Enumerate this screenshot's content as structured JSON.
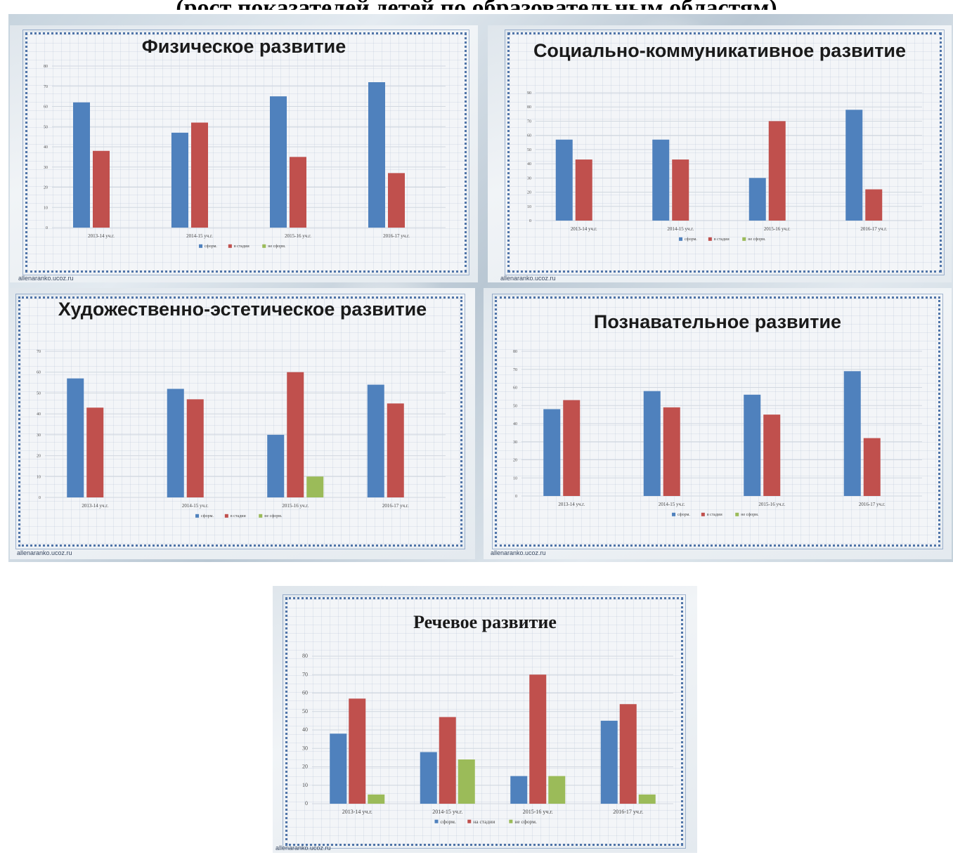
{
  "page": {
    "heading": "(рост показателей детей по образовательным областям)",
    "credit": "allenaranko.ucoz.ru"
  },
  "colors": {
    "s1": "#4f81bd",
    "s2": "#c0504d",
    "s3": "#9bbb59"
  },
  "chart_data": [
    {
      "type": "bar",
      "title": "Физическое развитие",
      "categories": [
        "2013-14 уч.г.",
        "2014-15 уч.г.",
        "2015-16 уч.г.",
        "2016-17 уч.г."
      ],
      "series": [
        {
          "name": "сформ.",
          "values": [
            62,
            47,
            65,
            72
          ]
        },
        {
          "name": "в стадии",
          "values": [
            38,
            52,
            35,
            27
          ]
        },
        {
          "name": "не сформ.",
          "values": [
            0,
            0,
            0,
            0
          ]
        }
      ],
      "ylim": [
        0,
        80
      ],
      "yticks": [
        "0",
        "10",
        "20",
        "30",
        "40",
        "50",
        "60",
        "70",
        "80"
      ]
    },
    {
      "type": "bar",
      "title": "Социально-коммуникативное развитие",
      "categories": [
        "2013-14 уч.г.",
        "2014-15 уч.г.",
        "2015-16 уч.г.",
        "2016-17 уч.г."
      ],
      "series": [
        {
          "name": "сформ.",
          "values": [
            57,
            57,
            30,
            78
          ]
        },
        {
          "name": "в стадии",
          "values": [
            43,
            43,
            70,
            22
          ]
        },
        {
          "name": "не сформ.",
          "values": [
            0,
            0,
            0,
            0
          ]
        }
      ],
      "ylim": [
        0,
        90
      ],
      "yticks": [
        "0",
        "10",
        "20",
        "30",
        "40",
        "50",
        "60",
        "70",
        "80",
        "90"
      ]
    },
    {
      "type": "bar",
      "title": "Художественно-эстетическое развитие",
      "categories": [
        "2013-14 уч.г.",
        "2014-15 уч.г.",
        "2015-16 уч.г.",
        "2016-17 уч.г."
      ],
      "series": [
        {
          "name": "сформ.",
          "values": [
            57,
            52,
            30,
            54
          ]
        },
        {
          "name": "в стадии",
          "values": [
            43,
            47,
            60,
            45
          ]
        },
        {
          "name": "не сформ.",
          "values": [
            0,
            0,
            10,
            0
          ]
        }
      ],
      "ylim": [
        0,
        70
      ],
      "yticks": [
        "0",
        "10",
        "20",
        "30",
        "40",
        "50",
        "60",
        "70"
      ]
    },
    {
      "type": "bar",
      "title": "Познавательное развитие",
      "categories": [
        "2013-14 уч.г.",
        "2014-15 уч.г.",
        "2015-16 уч.г.",
        "2016-17 уч.г."
      ],
      "series": [
        {
          "name": "сформ.",
          "values": [
            48,
            58,
            56,
            69
          ]
        },
        {
          "name": "в стадии",
          "values": [
            53,
            49,
            45,
            32
          ]
        },
        {
          "name": "не сформ.",
          "values": [
            0,
            0,
            0,
            0
          ]
        }
      ],
      "ylim": [
        0,
        80
      ],
      "yticks": [
        "0",
        "10",
        "20",
        "30",
        "40",
        "50",
        "60",
        "70",
        "80"
      ]
    },
    {
      "type": "bar",
      "title": "Речевое развитие",
      "categories": [
        "2013-14 уч.г.",
        "2014-15 уч.г.",
        "2015-16 уч.г.",
        "2016-17 уч.г."
      ],
      "series": [
        {
          "name": "сформ.",
          "values": [
            38,
            28,
            15,
            45
          ]
        },
        {
          "name": "на стадии",
          "values": [
            57,
            47,
            70,
            54
          ]
        },
        {
          "name": "не сформ.",
          "values": [
            5,
            24,
            15,
            5
          ]
        }
      ],
      "ylim": [
        0,
        80
      ],
      "yticks": [
        "0",
        "10",
        "20",
        "30",
        "40",
        "50",
        "60",
        "70",
        "80"
      ]
    }
  ]
}
